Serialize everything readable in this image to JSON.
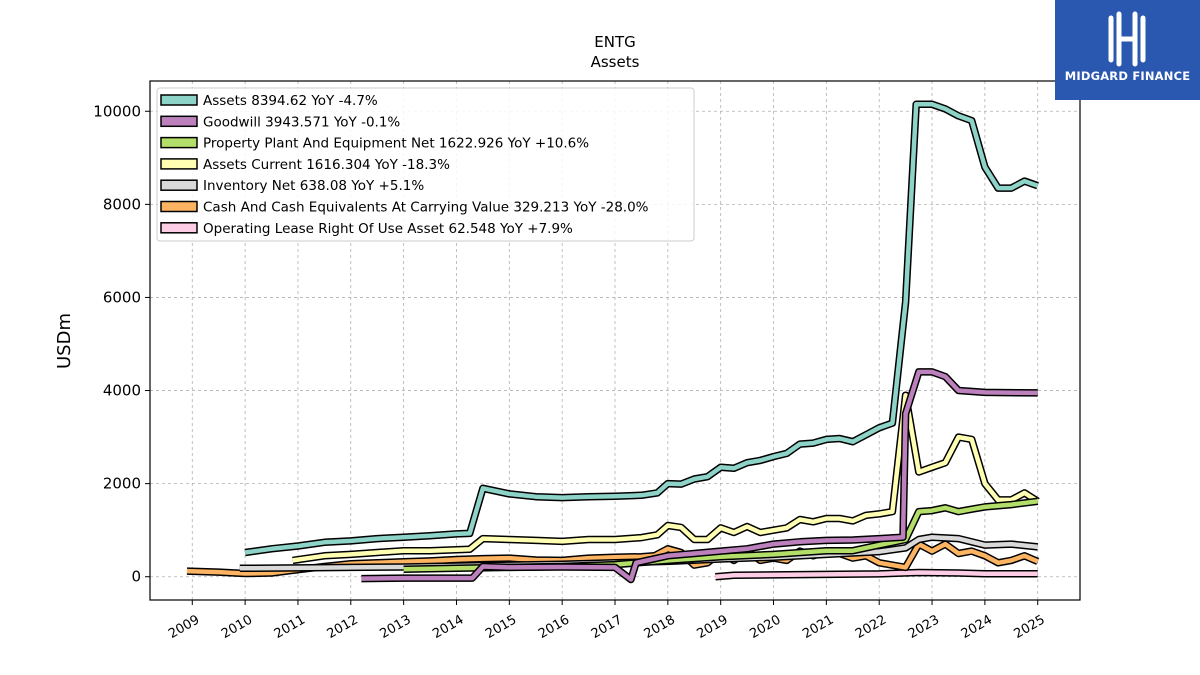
{
  "brand": {
    "name": "MIDGARD FINANCE",
    "color": "#2a57b0"
  },
  "chart_data": {
    "type": "line",
    "title": "ENTG",
    "subtitle": "Assets",
    "ylabel": "USDm",
    "xlabel": "",
    "ylim": [
      -500,
      10650
    ],
    "xlim": [
      2008.2,
      2025.8
    ],
    "yticks": [
      0,
      2000,
      4000,
      6000,
      8000,
      10000
    ],
    "xticks": [
      2009,
      2010,
      2011,
      2012,
      2013,
      2014,
      2015,
      2016,
      2017,
      2018,
      2019,
      2020,
      2021,
      2022,
      2023,
      2024,
      2025
    ],
    "grid": true,
    "legend_position": "top-left",
    "series": [
      {
        "name": "Assets",
        "legend": "Assets  8394.62 YoY -4.7%",
        "color": "#8dd3c7",
        "points": [
          [
            2010.0,
            520
          ],
          [
            2010.5,
            600
          ],
          [
            2011.0,
            660
          ],
          [
            2011.5,
            740
          ],
          [
            2012.0,
            770
          ],
          [
            2012.5,
            820
          ],
          [
            2013.0,
            850
          ],
          [
            2013.5,
            880
          ],
          [
            2014.0,
            920
          ],
          [
            2014.25,
            930
          ],
          [
            2014.5,
            1900
          ],
          [
            2015.0,
            1780
          ],
          [
            2015.5,
            1720
          ],
          [
            2016.0,
            1700
          ],
          [
            2016.5,
            1720
          ],
          [
            2017.0,
            1730
          ],
          [
            2017.5,
            1750
          ],
          [
            2017.8,
            1800
          ],
          [
            2018.0,
            2000
          ],
          [
            2018.25,
            1990
          ],
          [
            2018.5,
            2100
          ],
          [
            2018.75,
            2150
          ],
          [
            2019.0,
            2350
          ],
          [
            2019.25,
            2330
          ],
          [
            2019.5,
            2450
          ],
          [
            2019.75,
            2500
          ],
          [
            2020.0,
            2580
          ],
          [
            2020.25,
            2650
          ],
          [
            2020.5,
            2850
          ],
          [
            2020.75,
            2870
          ],
          [
            2021.0,
            2950
          ],
          [
            2021.25,
            2970
          ],
          [
            2021.5,
            2900
          ],
          [
            2021.75,
            3050
          ],
          [
            2022.0,
            3200
          ],
          [
            2022.25,
            3300
          ],
          [
            2022.5,
            5900
          ],
          [
            2022.7,
            10150
          ],
          [
            2023.0,
            10150
          ],
          [
            2023.25,
            10050
          ],
          [
            2023.5,
            9900
          ],
          [
            2023.75,
            9800
          ],
          [
            2024.0,
            8800
          ],
          [
            2024.25,
            8350
          ],
          [
            2024.5,
            8350
          ],
          [
            2024.75,
            8500
          ],
          [
            2025.0,
            8400
          ]
        ]
      },
      {
        "name": "Goodwill",
        "legend": "Goodwill  3943.571 YoY -0.1%",
        "color": "#bc80bd",
        "points": [
          [
            2012.2,
            -40
          ],
          [
            2013.0,
            -30
          ],
          [
            2014.0,
            -30
          ],
          [
            2014.3,
            -30
          ],
          [
            2014.5,
            220
          ],
          [
            2015.0,
            200
          ],
          [
            2016.0,
            210
          ],
          [
            2017.0,
            200
          ],
          [
            2017.3,
            -60
          ],
          [
            2017.4,
            300
          ],
          [
            2018.0,
            450
          ],
          [
            2018.5,
            500
          ],
          [
            2019.0,
            550
          ],
          [
            2019.5,
            600
          ],
          [
            2020.0,
            700
          ],
          [
            2020.5,
            750
          ],
          [
            2021.0,
            780
          ],
          [
            2021.5,
            790
          ],
          [
            2022.0,
            820
          ],
          [
            2022.45,
            850
          ],
          [
            2022.5,
            3500
          ],
          [
            2022.75,
            4400
          ],
          [
            2023.0,
            4400
          ],
          [
            2023.25,
            4300
          ],
          [
            2023.5,
            4000
          ],
          [
            2024.0,
            3960
          ],
          [
            2025.0,
            3950
          ]
        ]
      },
      {
        "name": "Property Plant And Equipment Net",
        "legend": "Property Plant And Equipment Net  1622.926 YoY +10.6%",
        "color": "#b3de69",
        "points": [
          [
            2013.0,
            160
          ],
          [
            2014.0,
            180
          ],
          [
            2015.0,
            200
          ],
          [
            2016.0,
            220
          ],
          [
            2017.0,
            260
          ],
          [
            2018.0,
            350
          ],
          [
            2019.0,
            430
          ],
          [
            2020.0,
            480
          ],
          [
            2021.0,
            560
          ],
          [
            2021.5,
            560
          ],
          [
            2022.0,
            680
          ],
          [
            2022.5,
            800
          ],
          [
            2022.75,
            1400
          ],
          [
            2023.0,
            1420
          ],
          [
            2023.25,
            1480
          ],
          [
            2023.5,
            1400
          ],
          [
            2023.75,
            1450
          ],
          [
            2024.0,
            1500
          ],
          [
            2024.5,
            1550
          ],
          [
            2025.0,
            1620
          ]
        ]
      },
      {
        "name": "Assets Current",
        "legend": "Assets Current  1616.304 YoY -18.3%",
        "color": "#ffffb3",
        "points": [
          [
            2010.9,
            350
          ],
          [
            2011.5,
            450
          ],
          [
            2012.0,
            480
          ],
          [
            2012.5,
            520
          ],
          [
            2013.0,
            560
          ],
          [
            2013.5,
            560
          ],
          [
            2014.0,
            580
          ],
          [
            2014.25,
            590
          ],
          [
            2014.5,
            820
          ],
          [
            2015.0,
            800
          ],
          [
            2015.5,
            780
          ],
          [
            2016.0,
            760
          ],
          [
            2016.5,
            800
          ],
          [
            2017.0,
            800
          ],
          [
            2017.5,
            840
          ],
          [
            2017.8,
            900
          ],
          [
            2018.0,
            1100
          ],
          [
            2018.25,
            1060
          ],
          [
            2018.5,
            800
          ],
          [
            2018.75,
            800
          ],
          [
            2019.0,
            1050
          ],
          [
            2019.25,
            950
          ],
          [
            2019.5,
            1080
          ],
          [
            2019.75,
            950
          ],
          [
            2020.0,
            1000
          ],
          [
            2020.25,
            1050
          ],
          [
            2020.5,
            1230
          ],
          [
            2020.75,
            1180
          ],
          [
            2021.0,
            1250
          ],
          [
            2021.25,
            1250
          ],
          [
            2021.5,
            1200
          ],
          [
            2021.75,
            1320
          ],
          [
            2022.0,
            1350
          ],
          [
            2022.25,
            1400
          ],
          [
            2022.5,
            3900
          ],
          [
            2022.75,
            2250
          ],
          [
            2023.0,
            2350
          ],
          [
            2023.25,
            2450
          ],
          [
            2023.5,
            3000
          ],
          [
            2023.75,
            2950
          ],
          [
            2024.0,
            2000
          ],
          [
            2024.25,
            1650
          ],
          [
            2024.5,
            1650
          ],
          [
            2024.75,
            1800
          ],
          [
            2025.0,
            1620
          ]
        ]
      },
      {
        "name": "Inventory Net",
        "legend": "Inventory Net  638.08 YoY +5.1%",
        "color": "#d9d9d9",
        "points": [
          [
            2009.9,
            180
          ],
          [
            2011.0,
            190
          ],
          [
            2012.0,
            200
          ],
          [
            2013.0,
            210
          ],
          [
            2014.0,
            230
          ],
          [
            2015.0,
            250
          ],
          [
            2016.0,
            270
          ],
          [
            2017.0,
            300
          ],
          [
            2018.0,
            330
          ],
          [
            2019.0,
            380
          ],
          [
            2020.0,
            420
          ],
          [
            2021.0,
            480
          ],
          [
            2022.0,
            540
          ],
          [
            2022.5,
            620
          ],
          [
            2022.75,
            800
          ],
          [
            2023.0,
            850
          ],
          [
            2023.5,
            820
          ],
          [
            2024.0,
            680
          ],
          [
            2024.5,
            700
          ],
          [
            2025.0,
            640
          ]
        ]
      },
      {
        "name": "Cash And Cash Equivalents At Carrying Value",
        "legend": "Cash And Cash Equivalents At Carrying Value  329.213 YoY -28.0%",
        "color": "#fdb462",
        "points": [
          [
            2008.9,
            120
          ],
          [
            2009.5,
            100
          ],
          [
            2010.0,
            70
          ],
          [
            2010.5,
            80
          ],
          [
            2011.0,
            150
          ],
          [
            2011.5,
            220
          ],
          [
            2012.0,
            280
          ],
          [
            2012.5,
            300
          ],
          [
            2013.0,
            320
          ],
          [
            2013.5,
            340
          ],
          [
            2014.0,
            370
          ],
          [
            2014.5,
            390
          ],
          [
            2015.0,
            400
          ],
          [
            2015.5,
            360
          ],
          [
            2016.0,
            350
          ],
          [
            2016.5,
            400
          ],
          [
            2017.0,
            420
          ],
          [
            2017.5,
            430
          ],
          [
            2017.75,
            450
          ],
          [
            2018.0,
            600
          ],
          [
            2018.25,
            520
          ],
          [
            2018.5,
            250
          ],
          [
            2018.75,
            300
          ],
          [
            2019.0,
            520
          ],
          [
            2019.25,
            350
          ],
          [
            2019.5,
            550
          ],
          [
            2019.75,
            350
          ],
          [
            2020.0,
            400
          ],
          [
            2020.25,
            350
          ],
          [
            2020.5,
            550
          ],
          [
            2020.75,
            450
          ],
          [
            2021.0,
            550
          ],
          [
            2021.25,
            500
          ],
          [
            2021.5,
            400
          ],
          [
            2021.75,
            450
          ],
          [
            2022.0,
            300
          ],
          [
            2022.5,
            200
          ],
          [
            2022.75,
            700
          ],
          [
            2023.0,
            550
          ],
          [
            2023.25,
            700
          ],
          [
            2023.5,
            500
          ],
          [
            2023.75,
            550
          ],
          [
            2024.0,
            450
          ],
          [
            2024.25,
            300
          ],
          [
            2024.5,
            350
          ],
          [
            2024.75,
            450
          ],
          [
            2025.0,
            330
          ]
        ]
      },
      {
        "name": "Operating Lease Right Of Use Asset",
        "legend": "Operating Lease Right Of Use Asset  62.548 YoY +7.9%",
        "color": "#fccde5",
        "points": [
          [
            2018.9,
            0
          ],
          [
            2019.25,
            30
          ],
          [
            2020.0,
            40
          ],
          [
            2021.0,
            50
          ],
          [
            2022.0,
            60
          ],
          [
            2022.75,
            90
          ],
          [
            2023.5,
            80
          ],
          [
            2024.0,
            65
          ],
          [
            2025.0,
            63
          ]
        ]
      }
    ]
  }
}
